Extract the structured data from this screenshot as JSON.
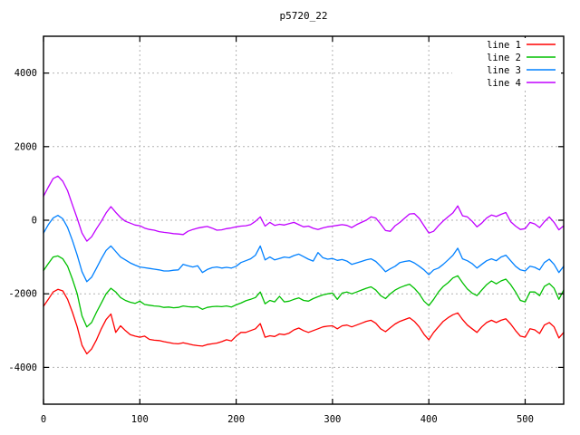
{
  "colors": {
    "background": "#ffffff",
    "plot_border": "#000000",
    "grid": "#b2b2b2",
    "text": "#000000",
    "line1": "#ff0000",
    "line2": "#00c000",
    "line3": "#0080ff",
    "line4": "#c000ff"
  },
  "chart_data": {
    "type": "line",
    "title": "p5720_22",
    "xlabel": "",
    "ylabel": "",
    "xlim": [
      0,
      540
    ],
    "ylim": [
      -5000,
      5000
    ],
    "x_ticks": [
      0,
      100,
      200,
      300,
      400,
      500
    ],
    "y_ticks": [
      -4000,
      -2000,
      0,
      2000,
      4000
    ],
    "grid": true,
    "legend": {
      "position": "top-right",
      "entries": [
        "line 1",
        "line 2",
        "line 3",
        "line 4"
      ]
    },
    "x": [
      0,
      5,
      10,
      15,
      20,
      25,
      30,
      35,
      40,
      45,
      50,
      55,
      60,
      65,
      70,
      75,
      80,
      85,
      90,
      95,
      100,
      105,
      110,
      115,
      120,
      125,
      130,
      135,
      140,
      145,
      150,
      155,
      160,
      165,
      170,
      175,
      180,
      185,
      190,
      195,
      200,
      205,
      210,
      215,
      220,
      225,
      230,
      235,
      240,
      245,
      250,
      255,
      260,
      265,
      270,
      275,
      280,
      285,
      290,
      295,
      300,
      305,
      310,
      315,
      320,
      325,
      330,
      335,
      340,
      345,
      350,
      355,
      360,
      365,
      370,
      375,
      380,
      385,
      390,
      395,
      400,
      405,
      410,
      415,
      420,
      425,
      430,
      435,
      440,
      445,
      450,
      455,
      460,
      465,
      470,
      475,
      480,
      485,
      490,
      495,
      500,
      505,
      510,
      515,
      520,
      525,
      530,
      535,
      540
    ],
    "series": [
      {
        "name": "line 1",
        "color": "#ff0000",
        "values": [
          -2340,
          -2150,
          -1950,
          -1880,
          -1920,
          -2150,
          -2500,
          -2900,
          -3400,
          -3630,
          -3500,
          -3250,
          -2950,
          -2700,
          -2550,
          -3050,
          -2870,
          -3000,
          -3110,
          -3150,
          -3180,
          -3150,
          -3240,
          -3260,
          -3270,
          -3300,
          -3325,
          -3350,
          -3360,
          -3330,
          -3360,
          -3390,
          -3410,
          -3420,
          -3380,
          -3360,
          -3340,
          -3300,
          -3250,
          -3280,
          -3150,
          -3050,
          -3050,
          -3000,
          -2950,
          -2810,
          -3180,
          -3140,
          -3160,
          -3090,
          -3110,
          -3070,
          -2980,
          -2930,
          -3000,
          -3050,
          -3000,
          -2950,
          -2900,
          -2880,
          -2870,
          -2950,
          -2870,
          -2850,
          -2900,
          -2850,
          -2800,
          -2750,
          -2720,
          -2800,
          -2950,
          -3030,
          -2920,
          -2820,
          -2750,
          -2700,
          -2650,
          -2750,
          -2900,
          -3100,
          -3250,
          -3050,
          -2900,
          -2750,
          -2650,
          -2570,
          -2520,
          -2700,
          -2850,
          -2950,
          -3050,
          -2900,
          -2780,
          -2720,
          -2780,
          -2720,
          -2680,
          -2820,
          -3000,
          -3150,
          -3180,
          -2950,
          -2980,
          -3080,
          -2850,
          -2780,
          -2900,
          -3200,
          -3050
        ]
      },
      {
        "name": "line 2",
        "color": "#00c000",
        "values": [
          -1370,
          -1180,
          -1000,
          -970,
          -1050,
          -1250,
          -1600,
          -2000,
          -2600,
          -2900,
          -2780,
          -2500,
          -2250,
          -2000,
          -1850,
          -1950,
          -2100,
          -2180,
          -2230,
          -2260,
          -2200,
          -2290,
          -2310,
          -2330,
          -2340,
          -2370,
          -2360,
          -2380,
          -2370,
          -2330,
          -2350,
          -2360,
          -2350,
          -2420,
          -2370,
          -2350,
          -2340,
          -2350,
          -2330,
          -2360,
          -2300,
          -2250,
          -2190,
          -2150,
          -2100,
          -1950,
          -2270,
          -2180,
          -2220,
          -2070,
          -2220,
          -2200,
          -2150,
          -2110,
          -2180,
          -2200,
          -2130,
          -2080,
          -2030,
          -2000,
          -1980,
          -2150,
          -1980,
          -1950,
          -2000,
          -1950,
          -1900,
          -1850,
          -1810,
          -1900,
          -2050,
          -2130,
          -2000,
          -1900,
          -1830,
          -1780,
          -1740,
          -1850,
          -2000,
          -2200,
          -2320,
          -2150,
          -1950,
          -1800,
          -1700,
          -1570,
          -1510,
          -1700,
          -1870,
          -1980,
          -2050,
          -1900,
          -1750,
          -1650,
          -1730,
          -1650,
          -1600,
          -1750,
          -1950,
          -2180,
          -2220,
          -1950,
          -1950,
          -2050,
          -1800,
          -1720,
          -1850,
          -2150,
          -1900
        ]
      },
      {
        "name": "line 3",
        "color": "#0080ff",
        "values": [
          -350,
          -120,
          60,
          130,
          40,
          -200,
          -550,
          -950,
          -1400,
          -1670,
          -1550,
          -1300,
          -1050,
          -820,
          -700,
          -850,
          -1000,
          -1080,
          -1160,
          -1220,
          -1270,
          -1290,
          -1310,
          -1330,
          -1350,
          -1380,
          -1380,
          -1360,
          -1350,
          -1200,
          -1240,
          -1270,
          -1240,
          -1420,
          -1340,
          -1290,
          -1270,
          -1300,
          -1280,
          -1300,
          -1250,
          -1150,
          -1100,
          -1050,
          -950,
          -700,
          -1080,
          -1000,
          -1080,
          -1040,
          -1000,
          -1020,
          -960,
          -920,
          -990,
          -1060,
          -1110,
          -880,
          -1020,
          -1060,
          -1040,
          -1090,
          -1070,
          -1110,
          -1200,
          -1160,
          -1120,
          -1080,
          -1050,
          -1120,
          -1250,
          -1400,
          -1320,
          -1250,
          -1150,
          -1120,
          -1100,
          -1160,
          -1250,
          -1350,
          -1480,
          -1350,
          -1300,
          -1200,
          -1080,
          -950,
          -760,
          -1050,
          -1100,
          -1180,
          -1300,
          -1200,
          -1100,
          -1050,
          -1100,
          -1000,
          -950,
          -1100,
          -1250,
          -1350,
          -1380,
          -1250,
          -1280,
          -1350,
          -1150,
          -1060,
          -1200,
          -1420,
          -1250
        ]
      },
      {
        "name": "line 4",
        "color": "#c000ff",
        "values": [
          650,
          900,
          1130,
          1200,
          1060,
          800,
          420,
          50,
          -350,
          -570,
          -450,
          -230,
          -30,
          200,
          370,
          215,
          75,
          -30,
          -80,
          -130,
          -150,
          -215,
          -250,
          -270,
          -310,
          -330,
          -345,
          -365,
          -375,
          -390,
          -300,
          -250,
          -215,
          -190,
          -170,
          -215,
          -270,
          -260,
          -230,
          -210,
          -180,
          -160,
          -150,
          -120,
          -30,
          90,
          -160,
          -60,
          -140,
          -110,
          -130,
          -90,
          -60,
          -120,
          -180,
          -160,
          -220,
          -250,
          -210,
          -180,
          -160,
          -140,
          -120,
          -140,
          -200,
          -120,
          -60,
          0,
          90,
          60,
          -100,
          -280,
          -300,
          -150,
          -60,
          60,
          170,
          180,
          50,
          -150,
          -350,
          -300,
          -150,
          -20,
          90,
          200,
          390,
          120,
          90,
          -30,
          -180,
          -80,
          60,
          140,
          100,
          160,
          210,
          -40,
          -160,
          -250,
          -230,
          -60,
          -100,
          -200,
          -40,
          90,
          -60,
          -260,
          -150
        ]
      }
    ]
  }
}
